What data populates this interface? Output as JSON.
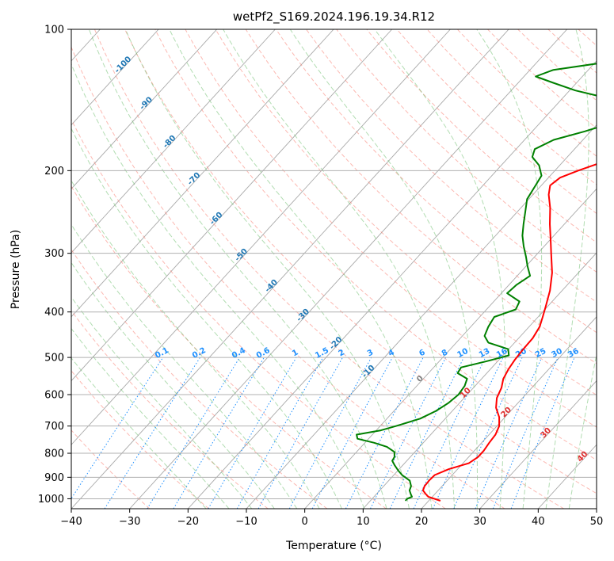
{
  "chart_data": {
    "type": "skew-t",
    "title": "wetPf2_S169.2024.196.19.34.R12",
    "xlabel": "Temperature (°C)",
    "ylabel": "Pressure (hPa)",
    "xlim": [
      -40,
      50
    ],
    "ylim": [
      1050,
      100
    ],
    "y_scale": "log",
    "grid": true,
    "x_ticks": [
      -40,
      -30,
      -20,
      -10,
      0,
      10,
      20,
      30,
      40,
      50
    ],
    "y_ticks": [
      100,
      200,
      300,
      400,
      500,
      600,
      700,
      800,
      900,
      1000
    ],
    "colors": {
      "temperature": "#ff0000",
      "dewpoint": "#008000",
      "isotherm": "#a9a9a9",
      "dry_adiabat": "#fa8072",
      "moist_adiabat": "#66bb66",
      "mixing_ratio": "#1e90ff",
      "lcl_label": "#e03030",
      "isotherm_label": "#1f77b4"
    },
    "series": [
      {
        "name": "temperature",
        "points": [
          [
            1010,
            22.0
          ],
          [
            990,
            19.3
          ],
          [
            975,
            18.3
          ],
          [
            960,
            17.4
          ],
          [
            940,
            17.0
          ],
          [
            915,
            16.9
          ],
          [
            890,
            17.0
          ],
          [
            865,
            18.5
          ],
          [
            840,
            21.0
          ],
          [
            815,
            21.6
          ],
          [
            790,
            21.6
          ],
          [
            760,
            21.3
          ],
          [
            730,
            21.1
          ],
          [
            700,
            20.4
          ],
          [
            670,
            19.0
          ],
          [
            640,
            17.0
          ],
          [
            610,
            15.6
          ],
          [
            580,
            14.8
          ],
          [
            555,
            13.7
          ],
          [
            530,
            13.1
          ],
          [
            505,
            12.7
          ],
          [
            480,
            12.5
          ],
          [
            455,
            12.4
          ],
          [
            430,
            11.8
          ],
          [
            410,
            10.8
          ],
          [
            390,
            9.7
          ],
          [
            360,
            7.9
          ],
          [
            330,
            5.5
          ],
          [
            300,
            2.3
          ],
          [
            280,
            0.0
          ],
          [
            260,
            -2.5
          ],
          [
            240,
            -5.0
          ],
          [
            225,
            -7.3
          ],
          [
            215,
            -8.5
          ],
          [
            207,
            -8.0
          ],
          [
            200,
            -6.0
          ],
          [
            190,
            -2.5
          ],
          [
            175,
            2.0
          ],
          [
            160,
            6.0
          ],
          [
            145,
            9.5
          ],
          [
            135,
            12.0
          ],
          [
            125,
            12.6
          ],
          [
            115,
            13.4
          ],
          [
            110,
            14.5
          ],
          [
            105,
            16.3
          ],
          [
            100,
            18.5
          ]
        ]
      },
      {
        "name": "dewpoint",
        "points": [
          [
            1010,
            16.0
          ],
          [
            1000,
            16.0
          ],
          [
            990,
            16.5
          ],
          [
            980,
            16.0
          ],
          [
            960,
            15.1
          ],
          [
            940,
            14.7
          ],
          [
            915,
            13.6
          ],
          [
            890,
            11.4
          ],
          [
            870,
            10.0
          ],
          [
            850,
            8.7
          ],
          [
            830,
            7.5
          ],
          [
            815,
            7.3
          ],
          [
            795,
            6.5
          ],
          [
            775,
            4.4
          ],
          [
            760,
            1.6
          ],
          [
            745,
            -1.9
          ],
          [
            730,
            -2.7
          ],
          [
            715,
            0.8
          ],
          [
            700,
            2.7
          ],
          [
            675,
            5.7
          ],
          [
            650,
            7.2
          ],
          [
            625,
            8.1
          ],
          [
            600,
            8.5
          ],
          [
            575,
            8.2
          ],
          [
            555,
            7.5
          ],
          [
            540,
            5.0
          ],
          [
            525,
            4.7
          ],
          [
            510,
            8.0
          ],
          [
            495,
            11.0
          ],
          [
            480,
            9.9
          ],
          [
            465,
            5.5
          ],
          [
            450,
            3.8
          ],
          [
            430,
            3.0
          ],
          [
            410,
            2.5
          ],
          [
            395,
            5.0
          ],
          [
            380,
            4.4
          ],
          [
            365,
            1.0
          ],
          [
            350,
            1.3
          ],
          [
            335,
            2.2
          ],
          [
            320,
            0.3
          ],
          [
            305,
            -1.5
          ],
          [
            290,
            -3.5
          ],
          [
            275,
            -5.4
          ],
          [
            260,
            -7.0
          ],
          [
            245,
            -8.6
          ],
          [
            230,
            -10.3
          ],
          [
            215,
            -11.0
          ],
          [
            205,
            -11.5
          ],
          [
            195,
            -13.5
          ],
          [
            187,
            -16.0
          ],
          [
            180,
            -16.8
          ],
          [
            172,
            -15.0
          ],
          [
            165,
            -11.0
          ],
          [
            158,
            -7.5
          ],
          [
            150,
            -6.0
          ],
          [
            142,
            -10.0
          ],
          [
            135,
            -19.0
          ],
          [
            130,
            -24.0
          ],
          [
            126,
            -28.0
          ],
          [
            122,
            -26.0
          ],
          [
            118,
            -19.0
          ],
          [
            114,
            -13.0
          ],
          [
            110,
            -9.0
          ],
          [
            105,
            -7.0
          ],
          [
            100,
            -5.0
          ]
        ]
      }
    ],
    "isotherm_labels": [
      "-100",
      "-90",
      "-80",
      "-70",
      "-60",
      "-50",
      "-40",
      "-30",
      "-20",
      "-10",
      "0",
      "10",
      "20",
      "30",
      "40"
    ],
    "mixing_ratio_labels": [
      "0.1",
      "0.2",
      "0.4",
      "0.6",
      "1",
      "1.5",
      "2",
      "3",
      "4",
      "6",
      "8",
      "10",
      "13",
      "16",
      "20",
      "25",
      "30",
      "36"
    ]
  }
}
